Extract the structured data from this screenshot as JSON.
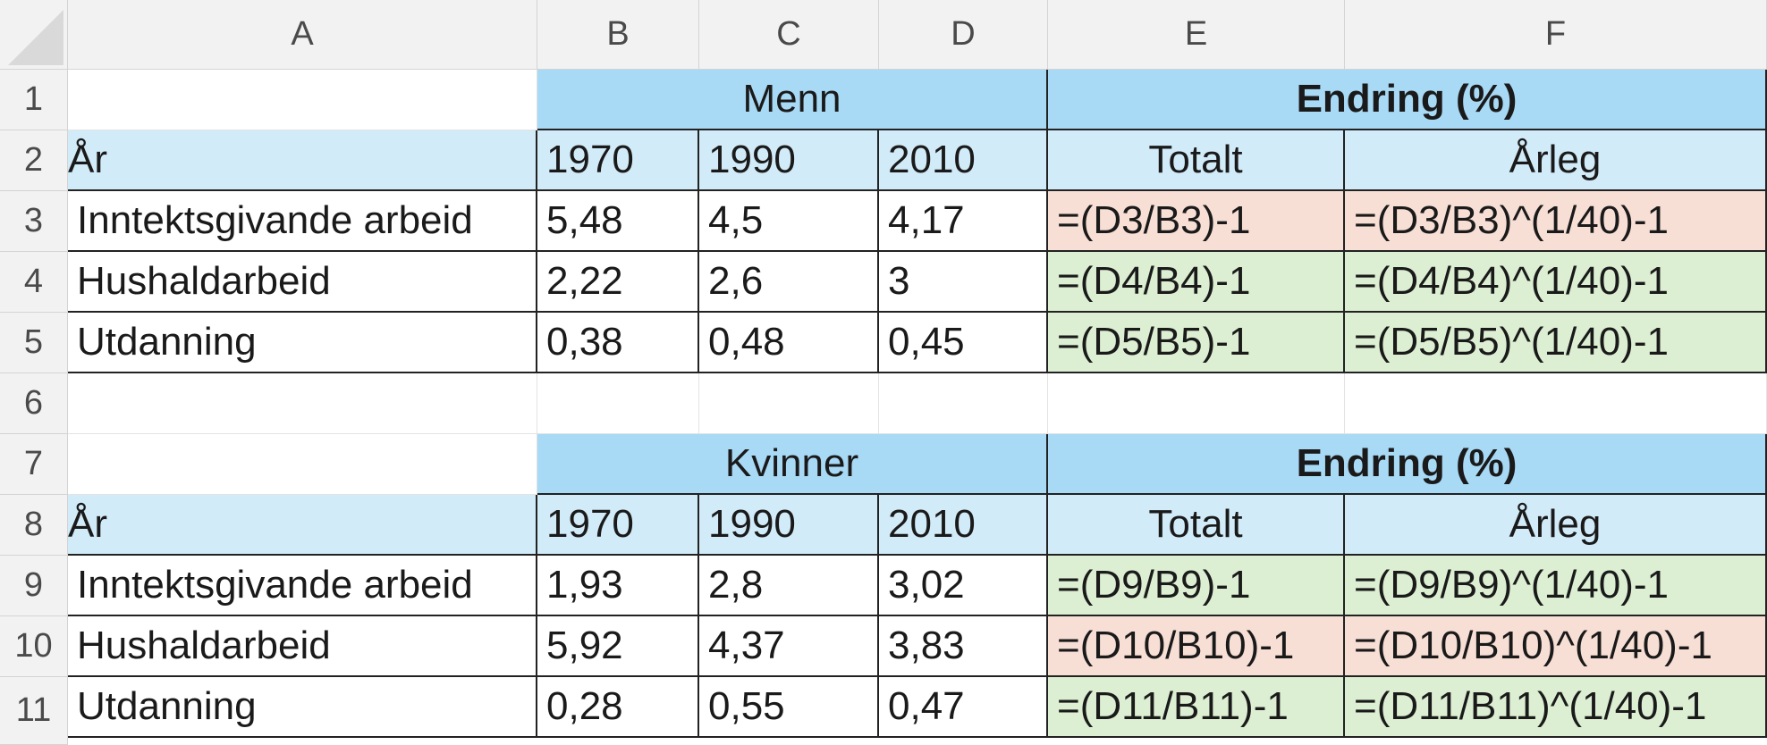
{
  "columns": [
    "A",
    "B",
    "C",
    "D",
    "E",
    "F"
  ],
  "rows": [
    "1",
    "2",
    "3",
    "4",
    "5",
    "6",
    "7",
    "8",
    "9",
    "10",
    "11"
  ],
  "colors": {
    "header_blue": "#a8d9f5",
    "light_blue": "#d2ebf8",
    "pink": "#f8dfd5",
    "green": "#dcefd2"
  },
  "table1": {
    "group_label": "Menn",
    "change_label": "Endring  (%)",
    "year_label": "År",
    "years": [
      "1970",
      "1990",
      "2010"
    ],
    "totalt": "Totalt",
    "arleg": "Årleg",
    "rows": [
      {
        "label": "Inntektsgivande arbeid",
        "v1970": "5,48",
        "v1990": "4,5",
        "v2010": "4,17",
        "total": "=(D3/B3)-1",
        "annual": "=(D3/B3)^(1/40)-1"
      },
      {
        "label": "Hushaldarbeid",
        "v1970": "2,22",
        "v1990": "2,6",
        "v2010": "3",
        "total": "=(D4/B4)-1",
        "annual": "=(D4/B4)^(1/40)-1"
      },
      {
        "label": "Utdanning",
        "v1970": "0,38",
        "v1990": "0,48",
        "v2010": "0,45",
        "total": "=(D5/B5)-1",
        "annual": "=(D5/B5)^(1/40)-1"
      }
    ]
  },
  "table2": {
    "group_label": "Kvinner",
    "change_label": "Endring  (%)",
    "year_label": "År",
    "years": [
      "1970",
      "1990",
      "2010"
    ],
    "totalt": "Totalt",
    "arleg": "Årleg",
    "rows": [
      {
        "label": "Inntektsgivande arbeid",
        "v1970": "1,93",
        "v1990": "2,8",
        "v2010": "3,02",
        "total": "=(D9/B9)-1",
        "annual": "=(D9/B9)^(1/40)-1"
      },
      {
        "label": "Hushaldarbeid",
        "v1970": "5,92",
        "v1990": "4,37",
        "v2010": "3,83",
        "total": "=(D10/B10)-1",
        "annual": "=(D10/B10)^(1/40)-1"
      },
      {
        "label": "Utdanning",
        "v1970": "0,28",
        "v1990": "0,55",
        "v2010": "0,47",
        "total": "=(D11/B11)-1",
        "annual": "=(D11/B11)^(1/40)-1"
      }
    ]
  }
}
